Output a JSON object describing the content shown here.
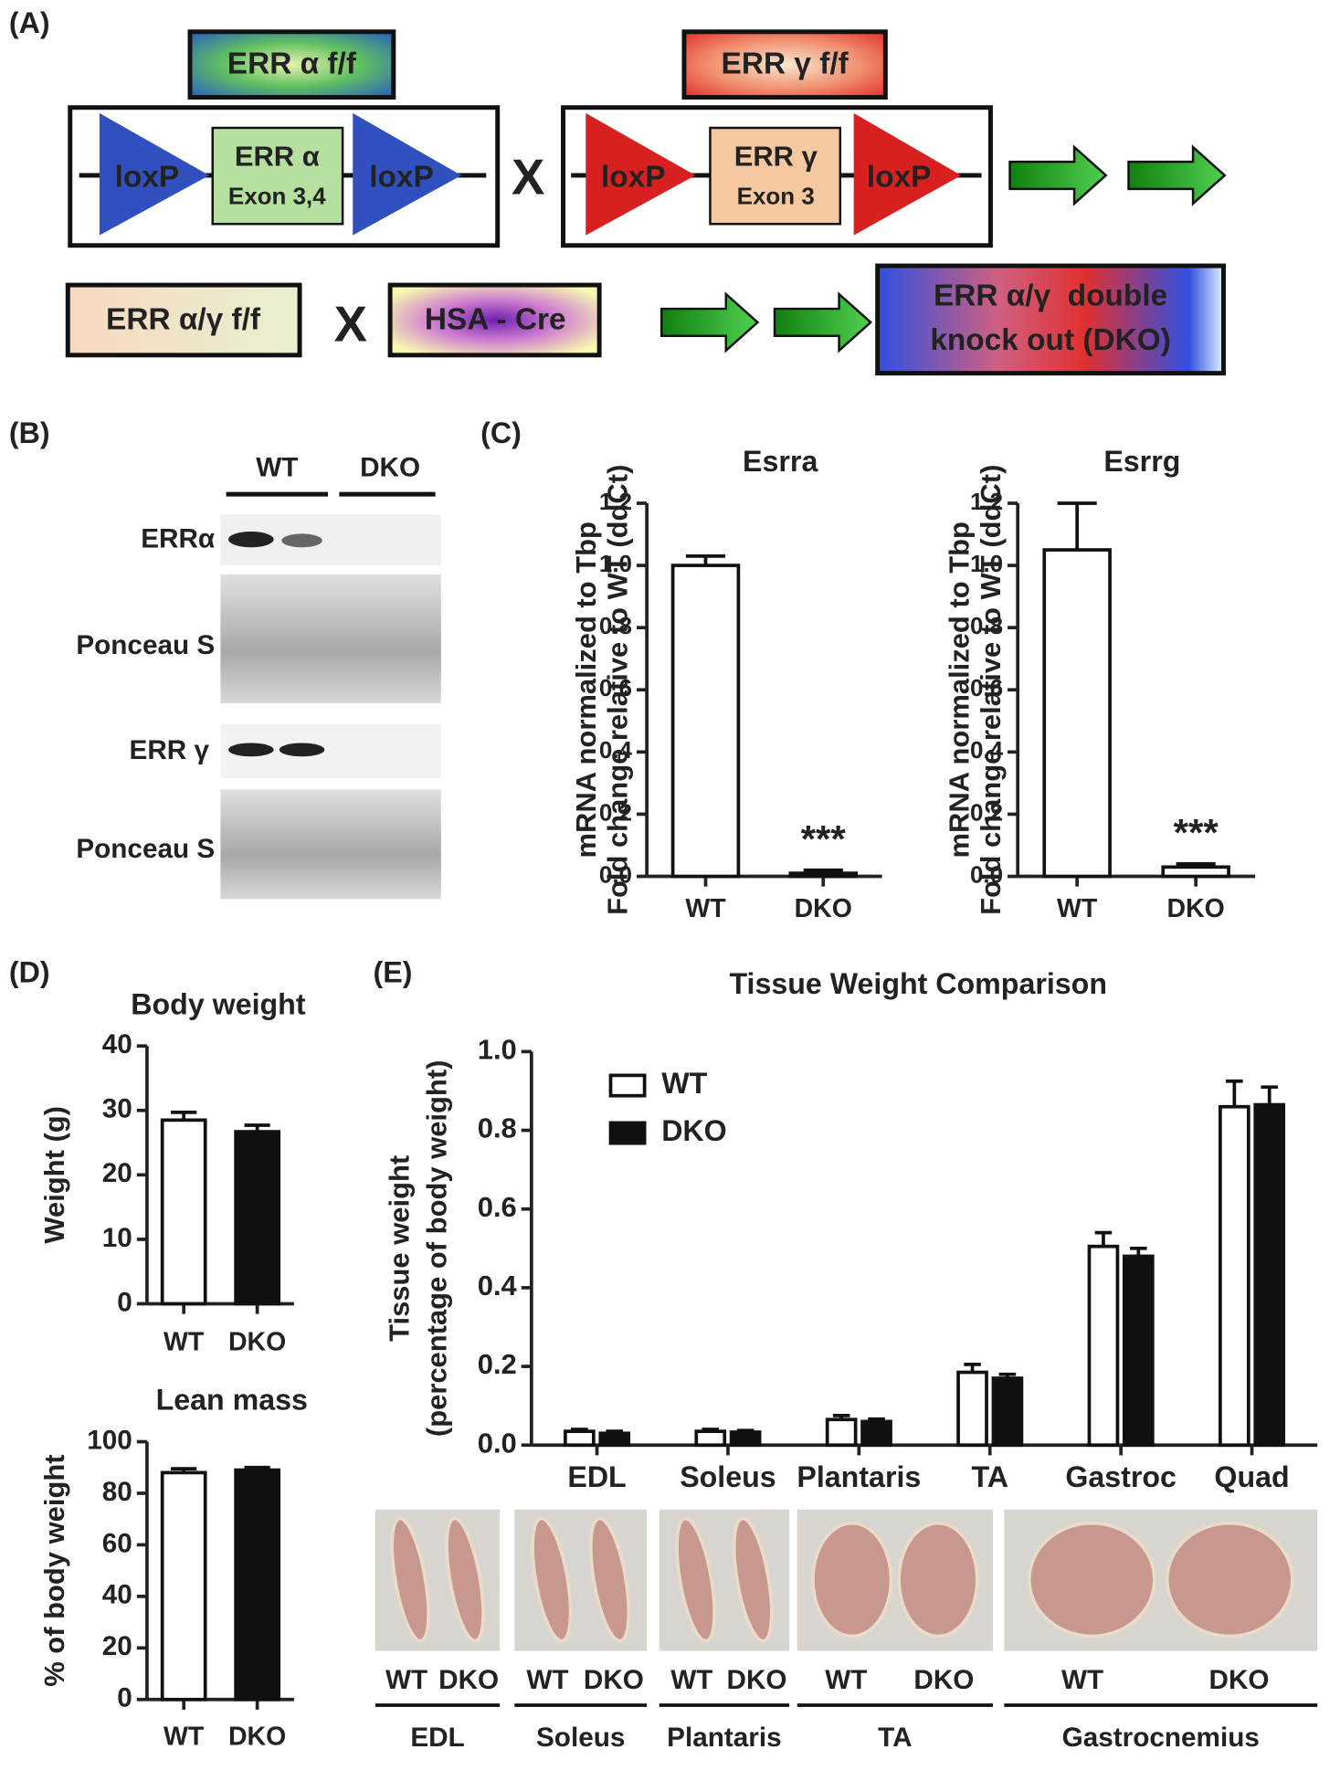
{
  "panel_labels": [
    "(A)",
    "(B)",
    "(C)",
    "(D)",
    "(E)"
  ],
  "diagram": {
    "alpha_flox": {
      "title": "ERR α f/f",
      "left_site": "loxP",
      "exon_name": "ERR α",
      "exon": "Exon 3,4",
      "right_site": "loxP"
    },
    "cross1": "X",
    "gamma_flox": {
      "title": "ERR γ f/f",
      "left_site": "loxP",
      "exon_name": "ERR γ",
      "exon": "Exon 3",
      "right_site": "loxP"
    },
    "double_flox": "ERR α/γ f/f",
    "cross2": "X",
    "cre": "HSA - Cre",
    "result": [
      "ERR α/γ  double",
      "knock out (DKO)"
    ]
  },
  "blot": {
    "groups": [
      "WT",
      "DKO"
    ],
    "rows": [
      "ERRα",
      "Ponceau S",
      "ERR γ",
      "Ponceau S"
    ]
  },
  "chart_data": [
    {
      "type": "bar",
      "title": "Esrra",
      "ylabel": [
        "mRNA normalized to Tbp",
        "Fold change relative to WT (ddCt)"
      ],
      "categories": [
        "WT",
        "DKO"
      ],
      "values": [
        1.0,
        0.01
      ],
      "errors": [
        0.03,
        0.01
      ],
      "colors": [
        "#ffffff",
        "#ffffff"
      ],
      "annotation": "***",
      "ylim": [
        0,
        1.2
      ],
      "yticks": [
        {
          "value": 0,
          "label": "0.0"
        },
        0.2,
        0.4,
        0.6,
        0.8,
        {
          "value": 1,
          "label": "1.0"
        },
        1.2
      ]
    },
    {
      "type": "bar",
      "title": "Esrrg",
      "ylabel": [
        "mRNA normalized to Tbp",
        "Fold change relative to WT (ddCt)"
      ],
      "categories": [
        "WT",
        "DKO"
      ],
      "values": [
        1.05,
        0.03
      ],
      "errors": [
        0.15,
        0.01
      ],
      "colors": [
        "#ffffff",
        "#ffffff"
      ],
      "annotation": "***",
      "ylim": [
        0,
        1.2
      ],
      "yticks": [
        {
          "value": 0,
          "label": "0.0"
        },
        0.2,
        0.4,
        0.6,
        0.8,
        {
          "value": 1,
          "label": "1.0"
        },
        1.2
      ]
    },
    {
      "type": "bar",
      "title": "Body weight",
      "ylabel": [
        "Weight (g)"
      ],
      "categories": [
        "WT",
        "DKO"
      ],
      "values": [
        28.5,
        26.7
      ],
      "errors": [
        1.2,
        1.0
      ],
      "colors": [
        "#ffffff",
        "#111111"
      ],
      "ylim": [
        0,
        40
      ],
      "yticks": [
        0,
        10,
        20,
        30,
        40
      ]
    },
    {
      "type": "bar",
      "title": "Lean mass",
      "ylabel": [
        "% of body weight"
      ],
      "categories": [
        "WT",
        "DKO"
      ],
      "values": [
        88,
        89
      ],
      "errors": [
        1.5,
        1.0
      ],
      "colors": [
        "#ffffff",
        "#111111"
      ],
      "ylim": [
        0,
        100
      ],
      "yticks": [
        0,
        20,
        40,
        60,
        80,
        100
      ]
    },
    {
      "type": "bar",
      "title": "Tissue Weight Comparison",
      "ylabel": [
        "Tissue weight",
        "(percentage of body weight)"
      ],
      "categories": [
        "EDL",
        "Soleus",
        "Plantaris",
        "TA",
        "Gastroc",
        "Quad"
      ],
      "series": [
        {
          "name": "WT",
          "color": "#ffffff",
          "values": [
            0.035,
            0.035,
            0.065,
            0.185,
            0.505,
            0.86
          ],
          "errors": [
            0.005,
            0.005,
            0.01,
            0.02,
            0.035,
            0.065
          ]
        },
        {
          "name": "DKO",
          "color": "#111111",
          "values": [
            0.03,
            0.033,
            0.06,
            0.17,
            0.48,
            0.865
          ],
          "errors": [
            0.005,
            0.004,
            0.006,
            0.01,
            0.02,
            0.045
          ]
        }
      ],
      "legend": "upper left",
      "ylim": [
        0,
        1.0
      ],
      "yticks": [
        {
          "value": 0,
          "label": "0.0"
        },
        0.2,
        0.4,
        0.6,
        0.8,
        {
          "value": 1,
          "label": "1.0"
        }
      ]
    }
  ],
  "photos": {
    "groups": [
      {
        "name": "EDL",
        "labels": [
          "WT",
          "DKO"
        ]
      },
      {
        "name": "Soleus",
        "labels": [
          "WT",
          "DKO"
        ]
      },
      {
        "name": "Plantaris",
        "labels": [
          "WT",
          "DKO"
        ]
      },
      {
        "name": "TA",
        "labels": [
          "WT",
          "DKO"
        ]
      },
      {
        "name": "Gastrocnemius",
        "labels": [
          "WT",
          "DKO"
        ]
      }
    ]
  }
}
